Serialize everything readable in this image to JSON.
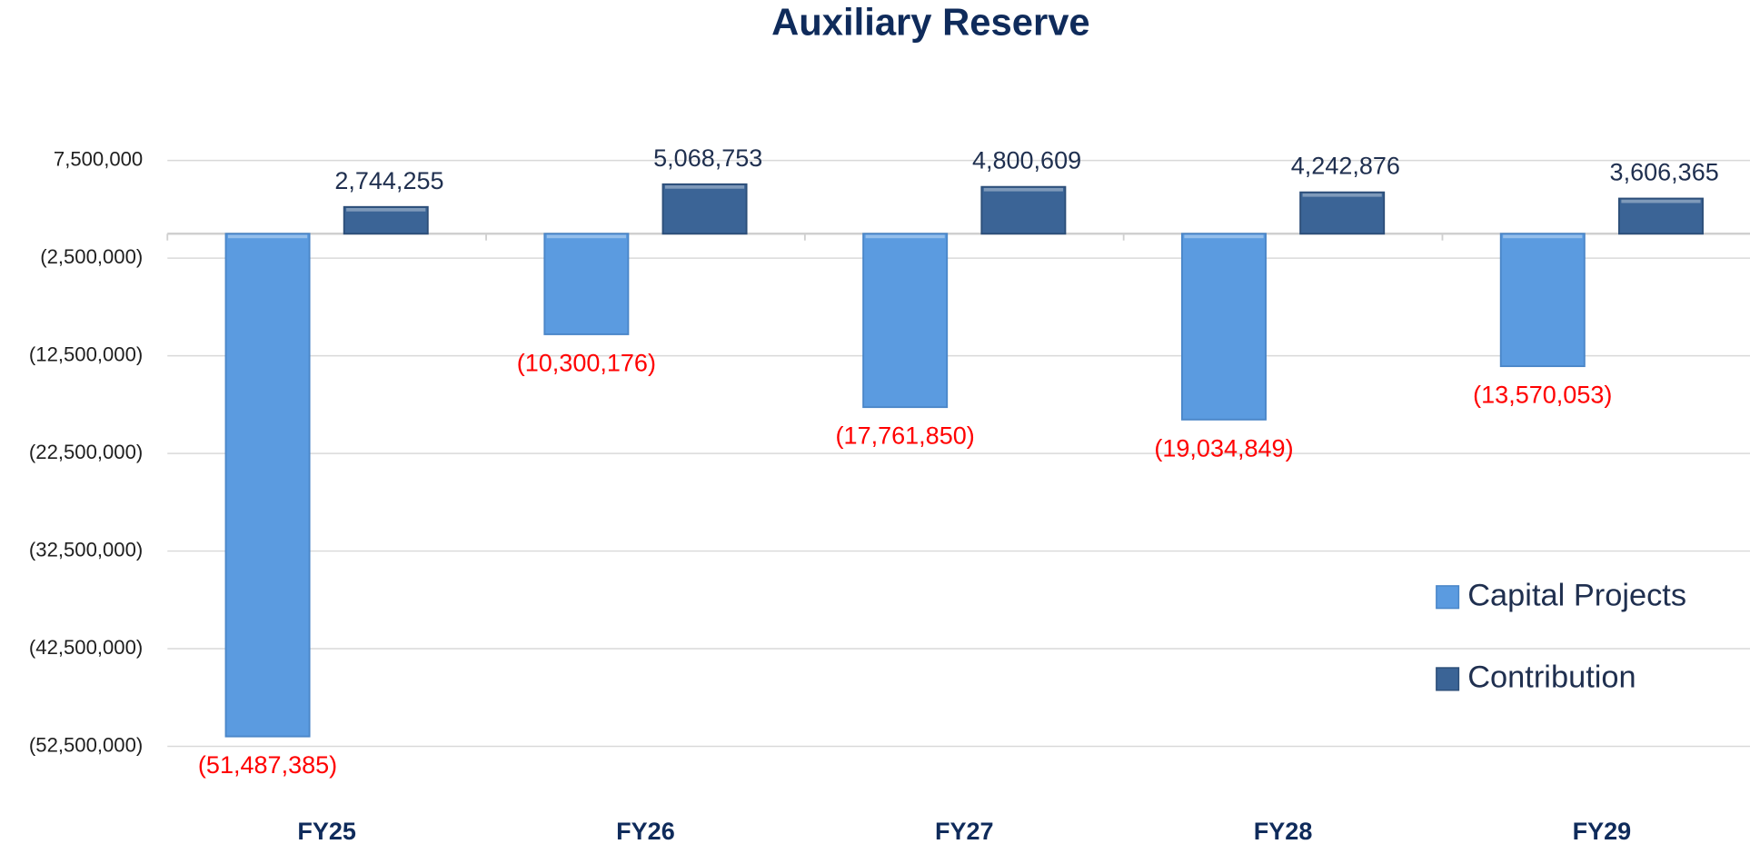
{
  "chart_data": {
    "type": "bar",
    "title": "Auxiliary Reserve",
    "categories": [
      "FY25",
      "FY26",
      "FY27",
      "FY28",
      "FY29"
    ],
    "series": [
      {
        "name": "Capital Projects",
        "color": "#5b9be0",
        "label_color": "#ff0000",
        "values": [
          -51487385,
          -10300176,
          -17761850,
          -19034849,
          -13570053
        ],
        "value_labels": [
          "(51,487,385)",
          "(10,300,176)",
          "(17,761,850)",
          "(19,034,849)",
          "(13,570,053)"
        ]
      },
      {
        "name": "Contribution",
        "color": "#3b6496",
        "label_color": "#1f2f4f",
        "values": [
          2744255,
          5068753,
          4800609,
          4242876,
          3606365
        ],
        "value_labels": [
          "2,744,255",
          "5,068,753",
          "4,800,609",
          "4,242,876",
          "3,606,365"
        ]
      }
    ],
    "ylim": [
      -52500000,
      7500000
    ],
    "yticks": [
      {
        "value": 7500000,
        "label": "7,500,000"
      },
      {
        "value": -2500000,
        "label": "(2,500,000)"
      },
      {
        "value": -12500000,
        "label": "(12,500,000)"
      },
      {
        "value": -22500000,
        "label": "(22,500,000)"
      },
      {
        "value": -32500000,
        "label": "(32,500,000)"
      },
      {
        "value": -42500000,
        "label": "(42,500,000)"
      },
      {
        "value": -52500000,
        "label": "(52,500,000)"
      }
    ],
    "grid": true,
    "legend": "right"
  }
}
